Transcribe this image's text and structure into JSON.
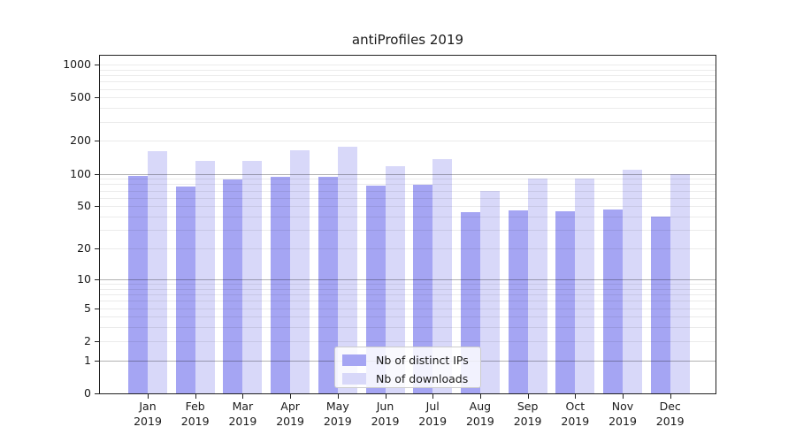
{
  "title": "antiProfiles 2019",
  "chart_data": {
    "type": "bar",
    "title": "antiProfiles 2019",
    "xlabel": "",
    "ylabel": "",
    "y_scale": "log1p",
    "ylim": [
      0,
      1000
    ],
    "y_ticks": [
      0,
      1,
      2,
      5,
      10,
      20,
      50,
      100,
      200,
      500,
      1000
    ],
    "major_grid_values": [
      1,
      10,
      100
    ],
    "minor_grid_values": [
      2,
      3,
      4,
      5,
      6,
      7,
      8,
      9,
      20,
      30,
      40,
      50,
      60,
      70,
      80,
      90,
      200,
      300,
      400,
      500,
      600,
      700,
      800,
      900,
      1000
    ],
    "grid": true,
    "legend_position": "bottom-center",
    "categories": [
      {
        "month": "Jan",
        "year": "2019"
      },
      {
        "month": "Feb",
        "year": "2019"
      },
      {
        "month": "Mar",
        "year": "2019"
      },
      {
        "month": "Apr",
        "year": "2019"
      },
      {
        "month": "May",
        "year": "2019"
      },
      {
        "month": "Jun",
        "year": "2019"
      },
      {
        "month": "Jul",
        "year": "2019"
      },
      {
        "month": "Aug",
        "year": "2019"
      },
      {
        "month": "Sep",
        "year": "2019"
      },
      {
        "month": "Oct",
        "year": "2019"
      },
      {
        "month": "Nov",
        "year": "2019"
      },
      {
        "month": "Dec",
        "year": "2019"
      }
    ],
    "series": [
      {
        "name": "Nb of distinct IPs",
        "color": "#a5a5f3",
        "values": [
          95,
          76,
          88,
          93,
          94,
          78,
          79,
          44,
          46,
          45,
          47,
          40
        ]
      },
      {
        "name": "Nb of downloads",
        "color": "#d8d8f9",
        "values": [
          160,
          131,
          131,
          165,
          176,
          118,
          136,
          70,
          91,
          91,
          108,
          99
        ]
      }
    ]
  },
  "colors": {
    "spine": "#222222",
    "text": "#1a1a1a",
    "background": "#ffffff"
  }
}
